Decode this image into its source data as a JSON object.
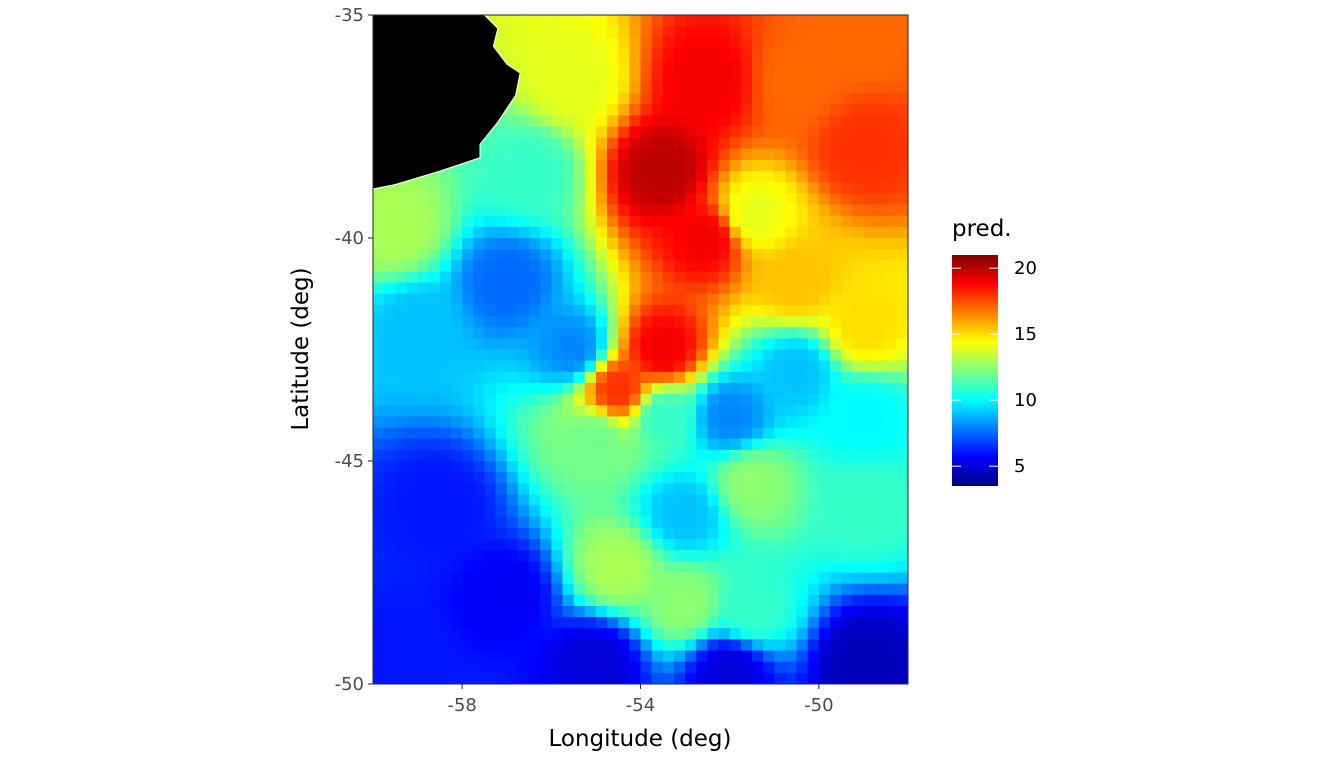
{
  "chart_data": {
    "type": "heatmap",
    "title": "",
    "xlabel": "Longitude (deg)",
    "ylabel": "Latitude (deg)",
    "xlim": [
      -60,
      -48
    ],
    "ylim": [
      -50,
      -35
    ],
    "x_ticks": [
      -58,
      -54,
      -50
    ],
    "x_tick_labels": [
      "-58",
      "-54",
      "-50"
    ],
    "y_ticks": [
      -35,
      -40,
      -45,
      -50
    ],
    "y_tick_labels": [
      "-35",
      "-40",
      "-45",
      "-50"
    ],
    "grid": false,
    "legend": {
      "title": "pred.",
      "placement": "right",
      "range": [
        3.5,
        21
      ],
      "ticks": [
        5,
        10,
        15,
        20
      ],
      "tick_labels": [
        "5",
        "10",
        "15",
        "20"
      ],
      "colors": [
        "#00007f",
        "#0000ff",
        "#007fff",
        "#00ffff",
        "#7fff7f",
        "#ffff00",
        "#ff7f00",
        "#ff0000",
        "#7f0000"
      ]
    },
    "land": {
      "color": "#000000",
      "outline": [
        [
          -60,
          -35
        ],
        [
          -57.5,
          -35
        ],
        [
          -57.2,
          -35.3
        ],
        [
          -57.3,
          -35.7
        ],
        [
          -57.0,
          -36.1
        ],
        [
          -56.7,
          -36.3
        ],
        [
          -56.8,
          -36.8
        ],
        [
          -57.2,
          -37.4
        ],
        [
          -57.6,
          -37.9
        ],
        [
          -57.6,
          -38.2
        ],
        [
          -58.5,
          -38.5
        ],
        [
          -59.5,
          -38.8
        ],
        [
          -60,
          -38.9
        ]
      ]
    },
    "field_anchors": [
      {
        "lon": -52.5,
        "lat": -36.5,
        "value": 19
      },
      {
        "lon": -53.5,
        "lat": -38.5,
        "value": 20
      },
      {
        "lon": -52.5,
        "lat": -40,
        "value": 19
      },
      {
        "lon": -53.5,
        "lat": -42.5,
        "value": 19
      },
      {
        "lon": -54.5,
        "lat": -43.4,
        "value": 18
      },
      {
        "lon": -50.5,
        "lat": -36.5,
        "value": 17
      },
      {
        "lon": -49,
        "lat": -35.5,
        "value": 17
      },
      {
        "lon": -49,
        "lat": -38,
        "value": 18
      },
      {
        "lon": -50.5,
        "lat": -41,
        "value": 15.5
      },
      {
        "lon": -49,
        "lat": -42,
        "value": 15
      },
      {
        "lon": -51.5,
        "lat": -39.5,
        "value": 14
      },
      {
        "lon": -55.5,
        "lat": -36.5,
        "value": 14
      },
      {
        "lon": -56.5,
        "lat": -38.5,
        "value": 11
      },
      {
        "lon": -59.5,
        "lat": -39.8,
        "value": 13
      },
      {
        "lon": -59,
        "lat": -42,
        "value": 9
      },
      {
        "lon": -57,
        "lat": -41,
        "value": 7.5
      },
      {
        "lon": -55.5,
        "lat": -42.5,
        "value": 8
      },
      {
        "lon": -55,
        "lat": -44.5,
        "value": 12
      },
      {
        "lon": -53.5,
        "lat": -44,
        "value": 11
      },
      {
        "lon": -52,
        "lat": -44,
        "value": 8
      },
      {
        "lon": -50.5,
        "lat": -43,
        "value": 9
      },
      {
        "lon": -49,
        "lat": -44,
        "value": 10
      },
      {
        "lon": -49,
        "lat": -46,
        "value": 11
      },
      {
        "lon": -51.5,
        "lat": -45.5,
        "value": 12.5
      },
      {
        "lon": -53,
        "lat": -46.2,
        "value": 9
      },
      {
        "lon": -54.5,
        "lat": -47.4,
        "value": 13
      },
      {
        "lon": -53,
        "lat": -48.2,
        "value": 12.5
      },
      {
        "lon": -51.5,
        "lat": -48.4,
        "value": 11
      },
      {
        "lon": -58.5,
        "lat": -46,
        "value": 6
      },
      {
        "lon": -57,
        "lat": -48,
        "value": 5.5
      },
      {
        "lon": -55,
        "lat": -49.5,
        "value": 5
      },
      {
        "lon": -52,
        "lat": -49.7,
        "value": 5
      },
      {
        "lon": -49,
        "lat": -49.5,
        "value": 4.5
      },
      {
        "lon": -59.5,
        "lat": -49.5,
        "value": 6
      }
    ]
  }
}
